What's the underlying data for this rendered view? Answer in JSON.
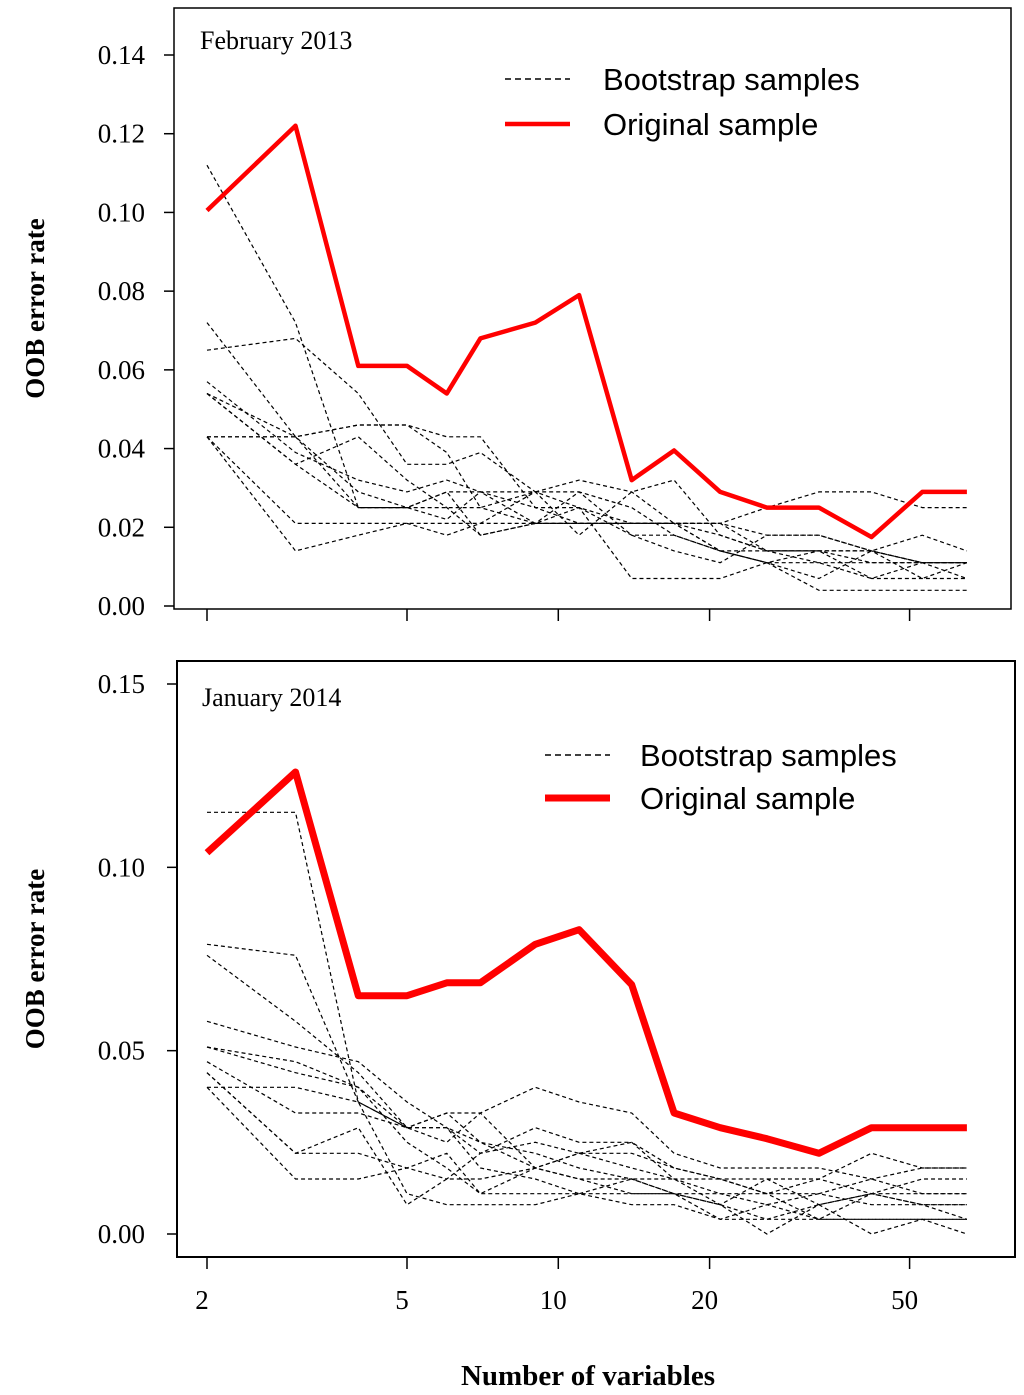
{
  "xlabel": "Number of variables",
  "x_ticks": [
    2,
    5,
    10,
    20,
    50
  ],
  "x_tick_labels": [
    "2",
    "5",
    "10",
    "20",
    "50"
  ],
  "x_scale": "log",
  "x_steps": [
    2,
    3,
    4,
    5,
    6,
    7,
    9,
    11,
    14,
    17,
    21,
    26,
    33,
    42,
    53,
    65
  ],
  "chart_data": [
    {
      "type": "line",
      "title": "February 2013",
      "xlabel": "",
      "ylabel": "OOB error rate",
      "ylim": [
        0,
        0.14
      ],
      "y_ticks": [
        0.0,
        0.02,
        0.04,
        0.06,
        0.08,
        0.1,
        0.12,
        0.14
      ],
      "y_tick_labels": [
        "0.00",
        "0.02",
        "0.04",
        "0.06",
        "0.08",
        "0.10",
        "0.12",
        "0.14"
      ],
      "legend": {
        "position": "top-right",
        "entries": [
          "Bootstrap samples",
          "Original sample"
        ]
      },
      "original": {
        "name": "Original sample",
        "color": "#ff0000",
        "values": [
          0.1005,
          0.122,
          0.061,
          0.061,
          0.054,
          0.068,
          0.072,
          0.079,
          0.032,
          0.0395,
          0.029,
          0.025,
          0.025,
          0.0175,
          0.029,
          0.029
        ]
      },
      "bootstrap": [
        {
          "name": "Bootstrap samples",
          "values": [
            0.112,
            0.072,
            0.025,
            0.025,
            0.029,
            0.018,
            0.021,
            0.025,
            0.007,
            0.007,
            0.007,
            0.011,
            0.014,
            0.014,
            0.018,
            0.014
          ]
        },
        {
          "name": "Bootstrap samples",
          "values": [
            0.072,
            0.043,
            0.029,
            0.025,
            0.022,
            0.029,
            0.025,
            0.025,
            0.021,
            0.021,
            0.014,
            0.014,
            0.014,
            0.014,
            0.011,
            0.011
          ]
        },
        {
          "name": "Bootstrap samples",
          "values": [
            0.065,
            0.068,
            0.054,
            0.036,
            0.036,
            0.039,
            0.029,
            0.025,
            0.018,
            0.018,
            0.014,
            0.011,
            0.007,
            0.014,
            0.011,
            0.007
          ]
        },
        {
          "name": "Bootstrap samples",
          "values": [
            0.057,
            0.039,
            0.032,
            0.029,
            0.032,
            0.029,
            0.029,
            0.032,
            0.029,
            0.021,
            0.021,
            0.025,
            0.029,
            0.029,
            0.025,
            0.025
          ]
        },
        {
          "name": "Bootstrap samples",
          "values": [
            0.054,
            0.036,
            0.025,
            0.025,
            0.025,
            0.025,
            0.021,
            0.021,
            0.021,
            0.021,
            0.021,
            0.014,
            0.014,
            0.011,
            0.011,
            0.011
          ]
        },
        {
          "name": "Bootstrap samples",
          "values": [
            0.054,
            0.043,
            0.025,
            0.025,
            0.029,
            0.029,
            0.021,
            0.021,
            0.021,
            0.021,
            0.014,
            0.011,
            0.011,
            0.011,
            0.011,
            0.011
          ]
        },
        {
          "name": "Bootstrap samples",
          "values": [
            0.043,
            0.043,
            0.046,
            0.046,
            0.043,
            0.043,
            0.025,
            0.021,
            0.021,
            0.021,
            0.018,
            0.014,
            0.014,
            0.007,
            0.007,
            0.007
          ]
        },
        {
          "name": "Bootstrap samples",
          "values": [
            0.043,
            0.021,
            0.021,
            0.021,
            0.021,
            0.021,
            0.021,
            0.021,
            0.021,
            0.021,
            0.021,
            0.018,
            0.018,
            0.014,
            0.007,
            0.011
          ]
        },
        {
          "name": "Bootstrap samples",
          "values": [
            0.043,
            0.014,
            0.018,
            0.021,
            0.018,
            0.021,
            0.029,
            0.018,
            0.029,
            0.032,
            0.018,
            0.014,
            0.011,
            0.007,
            0.011,
            0.011
          ]
        },
        {
          "name": "Bootstrap samples",
          "values": [
            0.054,
            0.036,
            0.043,
            0.032,
            0.025,
            0.018,
            0.021,
            0.029,
            0.025,
            0.018,
            0.014,
            0.011,
            0.004,
            0.004,
            0.004,
            0.004
          ]
        },
        {
          "name": "Bootstrap samples",
          "values": [
            0.043,
            0.043,
            0.046,
            0.046,
            0.039,
            0.025,
            0.029,
            0.029,
            0.018,
            0.014,
            0.011,
            0.018,
            0.018,
            0.014,
            0.011,
            0.011
          ]
        }
      ]
    },
    {
      "type": "line",
      "title": "January 2014",
      "xlabel": "Number of variables",
      "ylabel": "OOB error rate",
      "ylim": [
        0,
        0.15
      ],
      "y_ticks": [
        0.0,
        0.05,
        0.1,
        0.15
      ],
      "y_tick_labels": [
        "0.00",
        "0.05",
        "0.10",
        "0.15"
      ],
      "legend": {
        "position": "top-right",
        "entries": [
          "Bootstrap samples",
          "Original sample"
        ]
      },
      "original": {
        "name": "Original sample",
        "color": "#ff0000",
        "values": [
          0.104,
          0.126,
          0.065,
          0.065,
          0.0685,
          0.0685,
          0.079,
          0.083,
          0.068,
          0.033,
          0.029,
          0.026,
          0.022,
          0.029,
          0.029,
          0.029
        ]
      },
      "bootstrap": [
        {
          "name": "Bootstrap samples",
          "values": [
            0.115,
            0.115,
            0.036,
            0.029,
            0.029,
            0.025,
            0.018,
            0.022,
            0.018,
            0.015,
            0.015,
            0.011,
            0.015,
            0.011,
            0.015,
            0.015
          ]
        },
        {
          "name": "Bootstrap samples",
          "values": [
            0.079,
            0.076,
            0.036,
            0.029,
            0.033,
            0.025,
            0.022,
            0.018,
            0.015,
            0.011,
            0.011,
            0.008,
            0.011,
            0.008,
            0.008,
            0.008
          ]
        },
        {
          "name": "Bootstrap samples",
          "values": [
            0.076,
            0.058,
            0.044,
            0.029,
            0.025,
            0.033,
            0.04,
            0.036,
            0.033,
            0.022,
            0.018,
            0.018,
            0.018,
            0.015,
            0.018,
            0.018
          ]
        },
        {
          "name": "Bootstrap samples",
          "values": [
            0.058,
            0.051,
            0.047,
            0.036,
            0.029,
            0.022,
            0.025,
            0.022,
            0.022,
            0.018,
            0.015,
            0.015,
            0.008,
            0.011,
            0.011,
            0.011
          ]
        },
        {
          "name": "Bootstrap samples",
          "values": [
            0.051,
            0.044,
            0.04,
            0.029,
            0.033,
            0.033,
            0.018,
            0.022,
            0.025,
            0.018,
            0.015,
            0.011,
            0.004,
            0.011,
            0.008,
            0.004
          ]
        },
        {
          "name": "Bootstrap samples",
          "values": [
            0.051,
            0.047,
            0.04,
            0.025,
            0.018,
            0.011,
            0.018,
            0.015,
            0.015,
            0.011,
            0.008,
            0.0,
            0.008,
            0.0,
            0.004,
            0.0
          ]
        },
        {
          "name": "Bootstrap samples",
          "values": [
            0.047,
            0.033,
            0.033,
            0.029,
            0.029,
            0.018,
            0.015,
            0.011,
            0.011,
            0.011,
            0.008,
            0.004,
            0.004,
            0.004,
            0.004,
            0.004
          ]
        },
        {
          "name": "Bootstrap samples",
          "values": [
            0.044,
            0.022,
            0.022,
            0.018,
            0.015,
            0.022,
            0.029,
            0.025,
            0.025,
            0.015,
            0.011,
            0.011,
            0.011,
            0.015,
            0.011,
            0.011
          ]
        },
        {
          "name": "Bootstrap samples",
          "values": [
            0.04,
            0.015,
            0.015,
            0.018,
            0.022,
            0.011,
            0.011,
            0.011,
            0.015,
            0.015,
            0.008,
            0.015,
            0.015,
            0.022,
            0.018,
            0.018
          ]
        },
        {
          "name": "Bootstrap samples",
          "values": [
            0.04,
            0.04,
            0.036,
            0.011,
            0.008,
            0.008,
            0.008,
            0.011,
            0.008,
            0.008,
            0.004,
            0.004,
            0.008,
            0.011,
            0.008,
            0.008
          ]
        },
        {
          "name": "Bootstrap samples",
          "values": [
            0.044,
            0.022,
            0.029,
            0.008,
            0.015,
            0.015,
            0.018,
            0.015,
            0.011,
            0.011,
            0.004,
            0.008,
            0.004,
            0.004,
            0.004,
            0.004
          ]
        }
      ]
    }
  ]
}
